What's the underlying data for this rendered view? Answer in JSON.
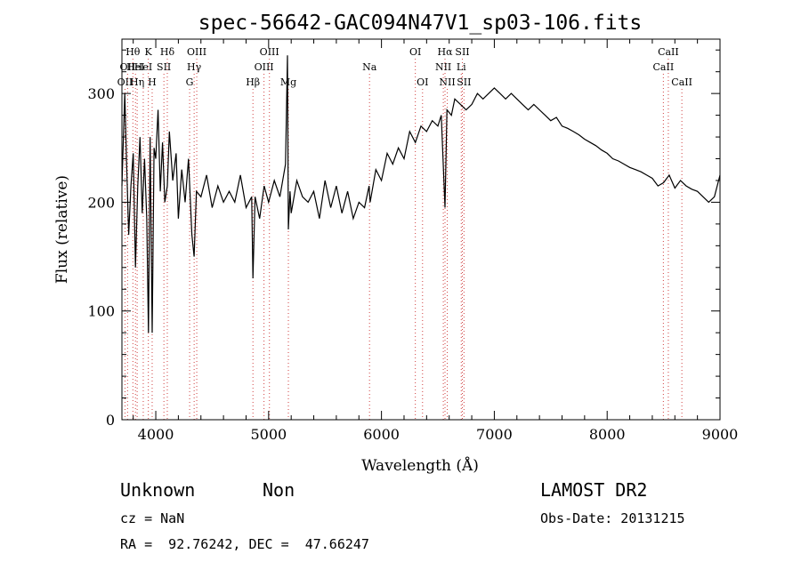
{
  "chart_data": {
    "type": "line",
    "title": "spec-56642-GAC094N47V1_sp03-106.fits",
    "xlabel": "Wavelength (Å)",
    "ylabel": "Flux (relative)",
    "xlim": [
      3700,
      9000
    ],
    "ylim": [
      0,
      350
    ],
    "x_ticks": [
      4000,
      5000,
      6000,
      7000,
      8000,
      9000
    ],
    "y_ticks": [
      0,
      100,
      200,
      300
    ],
    "grid": false,
    "series": [
      {
        "x": [
          3700,
          3725,
          3740,
          3760,
          3780,
          3800,
          3820,
          3840,
          3860,
          3880,
          3900,
          3920,
          3935,
          3950,
          3968,
          3985,
          4000,
          4020,
          4040,
          4060,
          4080,
          4102,
          4120,
          4150,
          4180,
          4200,
          4230,
          4260,
          4290,
          4320,
          4340,
          4360,
          4400,
          4450,
          4500,
          4550,
          4600,
          4650,
          4700,
          4750,
          4800,
          4850,
          4861,
          4880,
          4920,
          4960,
          5000,
          5050,
          5100,
          5150,
          5167,
          5175,
          5190,
          5200,
          5250,
          5300,
          5350,
          5400,
          5450,
          5500,
          5550,
          5600,
          5650,
          5700,
          5750,
          5800,
          5850,
          5890,
          5900,
          5950,
          6000,
          6050,
          6100,
          6150,
          6200,
          6250,
          6300,
          6350,
          6400,
          6450,
          6500,
          6530,
          6563,
          6580,
          6620,
          6650,
          6700,
          6750,
          6800,
          6850,
          6900,
          6950,
          7000,
          7050,
          7100,
          7150,
          7200,
          7250,
          7300,
          7350,
          7400,
          7450,
          7500,
          7550,
          7600,
          7650,
          7700,
          7750,
          7800,
          7850,
          7900,
          7950,
          8000,
          8050,
          8100,
          8150,
          8200,
          8250,
          8300,
          8350,
          8400,
          8450,
          8500,
          8550,
          8600,
          8650,
          8700,
          8750,
          8800,
          8850,
          8900,
          8950,
          9000
        ],
        "y": [
          215,
          300,
          240,
          170,
          215,
          245,
          140,
          215,
          260,
          190,
          240,
          185,
          80,
          260,
          80,
          250,
          240,
          285,
          210,
          255,
          200,
          215,
          265,
          220,
          245,
          185,
          230,
          200,
          240,
          170,
          150,
          210,
          205,
          225,
          195,
          215,
          200,
          210,
          200,
          225,
          195,
          205,
          130,
          205,
          185,
          215,
          200,
          220,
          205,
          235,
          335,
          175,
          210,
          190,
          220,
          205,
          200,
          210,
          185,
          220,
          195,
          215,
          190,
          210,
          185,
          200,
          195,
          215,
          200,
          230,
          220,
          245,
          235,
          250,
          240,
          265,
          255,
          270,
          265,
          275,
          270,
          280,
          195,
          285,
          280,
          295,
          290,
          285,
          290,
          300,
          295,
          300,
          305,
          300,
          295,
          300,
          295,
          290,
          285,
          290,
          285,
          280,
          275,
          278,
          270,
          268,
          265,
          262,
          258,
          255,
          252,
          248,
          245,
          240,
          238,
          235,
          232,
          230,
          228,
          225,
          222,
          215,
          218,
          225,
          213,
          220,
          215,
          212,
          210,
          205,
          200,
          205,
          225
        ]
      }
    ],
    "line_markers": [
      {
        "wavelength": 3727,
        "label": "OII",
        "row": 3
      },
      {
        "wavelength": 3750,
        "label": "OII",
        "row": 2
      },
      {
        "wavelength": 3797,
        "label": "Hθ",
        "row": 1
      },
      {
        "wavelength": 3835,
        "label": "Hη",
        "row": 3
      },
      {
        "wavelength": 3820,
        "label": "HeI",
        "row": 2
      },
      {
        "wavelength": 3889,
        "label": "HeI",
        "row": 2
      },
      {
        "wavelength": 3934,
        "label": "K",
        "row": 1
      },
      {
        "wavelength": 3968,
        "label": "H",
        "row": 3
      },
      {
        "wavelength": 4072,
        "label": "SII",
        "row": 2
      },
      {
        "wavelength": 4102,
        "label": "Hδ",
        "row": 1
      },
      {
        "wavelength": 4300,
        "label": "G",
        "row": 3
      },
      {
        "wavelength": 4340,
        "label": "Hγ",
        "row": 2
      },
      {
        "wavelength": 4363,
        "label": "OIII",
        "row": 1
      },
      {
        "wavelength": 4861,
        "label": "Hβ",
        "row": 3
      },
      {
        "wavelength": 4959,
        "label": "OIII",
        "row": 2
      },
      {
        "wavelength": 5007,
        "label": "OIII",
        "row": 1
      },
      {
        "wavelength": 5175,
        "label": "Mg",
        "row": 3
      },
      {
        "wavelength": 5894,
        "label": "Na",
        "row": 2
      },
      {
        "wavelength": 6300,
        "label": "OI",
        "row": 1
      },
      {
        "wavelength": 6364,
        "label": "OI",
        "row": 3
      },
      {
        "wavelength": 6548,
        "label": "NII",
        "row": 2
      },
      {
        "wavelength": 6563,
        "label": "Hα",
        "row": 1
      },
      {
        "wavelength": 6583,
        "label": "NII",
        "row": 3
      },
      {
        "wavelength": 6707,
        "label": "Li",
        "row": 2
      },
      {
        "wavelength": 6717,
        "label": "SII",
        "row": 1
      },
      {
        "wavelength": 6731,
        "label": "SII",
        "row": 3
      },
      {
        "wavelength": 8498,
        "label": "CaII",
        "row": 2
      },
      {
        "wavelength": 8542,
        "label": "CaII",
        "row": 1
      },
      {
        "wavelength": 8662,
        "label": "CaII",
        "row": 3
      }
    ]
  },
  "info": {
    "class": "Unknown",
    "subclass": "Non",
    "survey": "LAMOST DR2",
    "cz": "cz = NaN",
    "obs_date": "Obs-Date: 20131215",
    "coords": "RA =  92.76242, DEC =  47.66247"
  }
}
